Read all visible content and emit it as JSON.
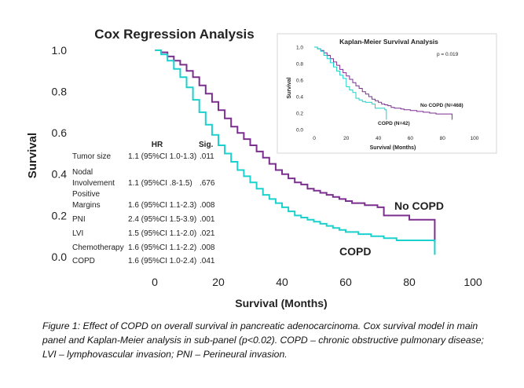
{
  "chart_data": [
    {
      "type": "line",
      "title": "Cox Regression Analysis",
      "xlabel": "Survival (Months)",
      "ylabel": "Survival",
      "xlim": [
        0,
        100
      ],
      "ylim": [
        0,
        1.0
      ],
      "x_ticks": [
        "0",
        "20",
        "40",
        "60",
        "80",
        "100"
      ],
      "y_ticks": [
        "0.0",
        "0.2",
        "0.4",
        "0.6",
        "0.8",
        "1.0"
      ],
      "grid": false,
      "series": [
        {
          "name": "No COPD",
          "color": "#7b2f8f",
          "points": [
            [
              0,
              1.0
            ],
            [
              2,
              0.99
            ],
            [
              4,
              0.97
            ],
            [
              6,
              0.95
            ],
            [
              8,
              0.93
            ],
            [
              10,
              0.9
            ],
            [
              12,
              0.87
            ],
            [
              14,
              0.83
            ],
            [
              16,
              0.79
            ],
            [
              18,
              0.75
            ],
            [
              20,
              0.71
            ],
            [
              22,
              0.67
            ],
            [
              24,
              0.63
            ],
            [
              26,
              0.6
            ],
            [
              28,
              0.57
            ],
            [
              30,
              0.54
            ],
            [
              32,
              0.51
            ],
            [
              34,
              0.48
            ],
            [
              36,
              0.45
            ],
            [
              38,
              0.42
            ],
            [
              40,
              0.4
            ],
            [
              42,
              0.38
            ],
            [
              44,
              0.36
            ],
            [
              46,
              0.35
            ],
            [
              48,
              0.33
            ],
            [
              50,
              0.32
            ],
            [
              52,
              0.31
            ],
            [
              54,
              0.3
            ],
            [
              56,
              0.29
            ],
            [
              58,
              0.28
            ],
            [
              60,
              0.27
            ],
            [
              62,
              0.26
            ],
            [
              64,
              0.26
            ],
            [
              66,
              0.25
            ],
            [
              68,
              0.25
            ],
            [
              70,
              0.24
            ],
            [
              72,
              0.2
            ],
            [
              80,
              0.18
            ],
            [
              88,
              0.18
            ],
            [
              88,
              0.07
            ]
          ]
        },
        {
          "name": "COPD",
          "color": "#1bd1cd",
          "points": [
            [
              0,
              1.0
            ],
            [
              2,
              0.98
            ],
            [
              4,
              0.95
            ],
            [
              6,
              0.91
            ],
            [
              8,
              0.87
            ],
            [
              10,
              0.82
            ],
            [
              12,
              0.76
            ],
            [
              14,
              0.7
            ],
            [
              16,
              0.64
            ],
            [
              18,
              0.59
            ],
            [
              20,
              0.54
            ],
            [
              22,
              0.5
            ],
            [
              24,
              0.46
            ],
            [
              26,
              0.42
            ],
            [
              28,
              0.39
            ],
            [
              30,
              0.36
            ],
            [
              32,
              0.33
            ],
            [
              34,
              0.3
            ],
            [
              36,
              0.28
            ],
            [
              38,
              0.26
            ],
            [
              40,
              0.24
            ],
            [
              42,
              0.22
            ],
            [
              44,
              0.2
            ],
            [
              46,
              0.19
            ],
            [
              48,
              0.18
            ],
            [
              50,
              0.17
            ],
            [
              52,
              0.16
            ],
            [
              54,
              0.15
            ],
            [
              56,
              0.14
            ],
            [
              58,
              0.13
            ],
            [
              60,
              0.12
            ],
            [
              64,
              0.11
            ],
            [
              68,
              0.1
            ],
            [
              72,
              0.09
            ],
            [
              76,
              0.08
            ],
            [
              80,
              0.08
            ],
            [
              88,
              0.07
            ],
            [
              88,
              0.01
            ]
          ]
        }
      ],
      "table": {
        "headers": [
          "HR",
          "Sig."
        ],
        "rows": [
          {
            "label": [
              "Tumor size"
            ],
            "hr": "1.1 (95%CI 1.0-1.3)",
            "sig": ".011"
          },
          {
            "label": [
              "Nodal",
              "Involvement"
            ],
            "hr": "1.1 (95%CI .8-1.5)",
            "sig": ".676"
          },
          {
            "label": [
              "Positive",
              "Margins"
            ],
            "hr": "1.6 (95%CI 1.1-2.3)",
            "sig": ".008"
          },
          {
            "label": [
              "PNI"
            ],
            "hr": "2.4 (95%CI 1.5-3.9)",
            "sig": ".001"
          },
          {
            "label": [
              "LVI"
            ],
            "hr": "1.5 (95%CI 1.1-2.0)",
            "sig": ".021"
          },
          {
            "label": [
              "Chemotherapy"
            ],
            "hr": "1.6 (95%CI 1.1-2.2)",
            "sig": ".008"
          },
          {
            "label": [
              "COPD"
            ],
            "hr": "1.6 (95%CI 1.0-2.4)",
            "sig": ".041"
          }
        ]
      }
    },
    {
      "type": "line",
      "title": "Kaplan-Meier Survival Analysis",
      "annotation": "p = 0.019",
      "xlabel": "Survival (Months)",
      "ylabel": "Survival",
      "xlim": [
        0,
        100
      ],
      "ylim": [
        0,
        1.0
      ],
      "x_ticks": [
        "0",
        "20",
        "40",
        "60",
        "80",
        "100"
      ],
      "y_ticks": [
        "0.0",
        "0.2",
        "0.4",
        "0.6",
        "0.8",
        "1.0"
      ],
      "grid": false,
      "series": [
        {
          "name": "No COPD (N=468)",
          "color": "#7b2f8f",
          "points": [
            [
              0,
              1.0
            ],
            [
              2,
              0.98
            ],
            [
              4,
              0.96
            ],
            [
              6,
              0.93
            ],
            [
              8,
              0.9
            ],
            [
              10,
              0.86
            ],
            [
              12,
              0.82
            ],
            [
              14,
              0.78
            ],
            [
              16,
              0.73
            ],
            [
              18,
              0.69
            ],
            [
              20,
              0.65
            ],
            [
              22,
              0.61
            ],
            [
              24,
              0.57
            ],
            [
              26,
              0.53
            ],
            [
              28,
              0.5
            ],
            [
              30,
              0.46
            ],
            [
              32,
              0.43
            ],
            [
              34,
              0.4
            ],
            [
              36,
              0.37
            ],
            [
              38,
              0.35
            ],
            [
              40,
              0.33
            ],
            [
              42,
              0.31
            ],
            [
              44,
              0.3
            ],
            [
              46,
              0.29
            ],
            [
              48,
              0.27
            ],
            [
              50,
              0.26
            ],
            [
              52,
              0.26
            ],
            [
              54,
              0.25
            ],
            [
              56,
              0.24
            ],
            [
              58,
              0.24
            ],
            [
              60,
              0.23
            ],
            [
              64,
              0.22
            ],
            [
              68,
              0.21
            ],
            [
              72,
              0.2
            ],
            [
              76,
              0.19
            ],
            [
              80,
              0.19
            ],
            [
              86,
              0.19
            ],
            [
              86,
              0.12
            ]
          ]
        },
        {
          "name": "COPD (N=42)",
          "color": "#1bd1cd",
          "points": [
            [
              0,
              1.0
            ],
            [
              2,
              0.98
            ],
            [
              4,
              0.95
            ],
            [
              6,
              0.9
            ],
            [
              8,
              0.86
            ],
            [
              10,
              0.81
            ],
            [
              12,
              0.76
            ],
            [
              14,
              0.71
            ],
            [
              16,
              0.66
            ],
            [
              18,
              0.62
            ],
            [
              20,
              0.52
            ],
            [
              22,
              0.48
            ],
            [
              24,
              0.45
            ],
            [
              26,
              0.38
            ],
            [
              28,
              0.36
            ],
            [
              30,
              0.34
            ],
            [
              32,
              0.33
            ],
            [
              34,
              0.33
            ],
            [
              36,
              0.31
            ],
            [
              38,
              0.26
            ],
            [
              40,
              0.26
            ],
            [
              42,
              0.26
            ],
            [
              44,
              0.24
            ],
            [
              45,
              0.12
            ]
          ]
        }
      ]
    }
  ],
  "caption": [
    "Figure 1: Effect of COPD on overall survival in pancreatic adenocarcinoma. Cox survival model in main",
    "panel and Kaplan-Meier analysis in sub-panel (p<0.02). COPD – chronic obstructive pulmonary disease;",
    "LVI – lymphovascular invasion; PNI – Perineural invasion."
  ]
}
